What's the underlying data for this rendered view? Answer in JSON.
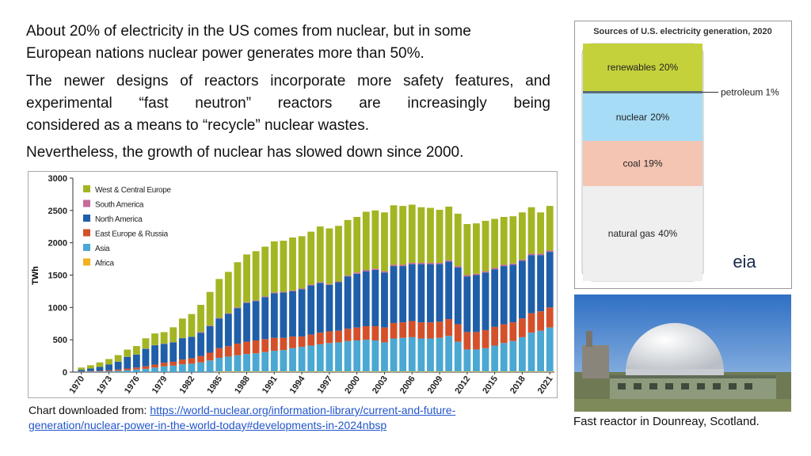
{
  "slide": {
    "paragraphs": [
      [
        "About 20% of electricity in the US comes from nuclear, but in some",
        "European nations nuclear power generates more than 50%."
      ],
      [
        "The newer designs of reactors incorporate more safety features, and",
        "experimental “fast neutron” reactors are increasingly being",
        "considered as a means  to “recycle” nuclear wastes."
      ],
      [
        "Nevertheless, the growth of nuclear has slowed down since 2000."
      ]
    ],
    "source": {
      "prefix": "Chart downloaded from:",
      "link": "https://world-nuclear.org/information-library/current-and-future-generation/nuclear-power-in-the-world-today#developments-in-2024nbsp"
    },
    "photo_caption": "Fast reactor in Dounreay, Scotland."
  },
  "chart_data": [
    {
      "type": "stacked-bar",
      "y_label": "TWh",
      "categories": [
        "1970",
        null,
        null,
        "1973",
        null,
        null,
        "1976",
        null,
        null,
        "1979",
        null,
        null,
        "1982",
        null,
        null,
        "1985",
        null,
        null,
        "1988",
        null,
        null,
        "1991",
        null,
        null,
        "1994",
        null,
        null,
        "1997",
        null,
        null,
        "2000",
        null,
        null,
        "2003",
        null,
        null,
        "2006",
        null,
        null,
        "2009",
        null,
        null,
        "2012",
        null,
        null,
        "2015",
        null,
        null,
        "2018",
        null,
        null,
        "2021"
      ],
      "ylim": [
        0,
        3000
      ],
      "yticks": [
        0,
        500,
        1000,
        1500,
        2000,
        2500,
        3000
      ],
      "grid": false,
      "series": [
        {
          "name": "West & Central Europe",
          "color": "#a4b524",
          "values": [
            35,
            50,
            70,
            85,
            100,
            110,
            130,
            160,
            180,
            180,
            230,
            300,
            350,
            420,
            520,
            600,
            640,
            700,
            740,
            760,
            770,
            790,
            790,
            820,
            810,
            820,
            860,
            860,
            860,
            860,
            860,
            900,
            900,
            910,
            920,
            910,
            900,
            860,
            850,
            820,
            830,
            810,
            790,
            780,
            780,
            760,
            740,
            730,
            730,
            720,
            640,
            690
          ]
        },
        {
          "name": "South America",
          "color": "#c76a9c",
          "values": [
            0,
            0,
            0,
            0,
            3,
            3,
            3,
            3,
            3,
            3,
            3,
            3,
            3,
            10,
            10,
            10,
            10,
            10,
            10,
            10,
            10,
            12,
            12,
            12,
            12,
            12,
            12,
            12,
            12,
            12,
            20,
            20,
            20,
            20,
            20,
            20,
            20,
            20,
            20,
            20,
            20,
            20,
            20,
            20,
            20,
            20,
            20,
            20,
            20,
            20,
            20,
            20
          ]
        },
        {
          "name": "North America",
          "color": "#1f5ea8",
          "values": [
            25,
            40,
            60,
            90,
            120,
            180,
            200,
            270,
            300,
            290,
            300,
            330,
            330,
            360,
            410,
            460,
            500,
            550,
            600,
            610,
            650,
            690,
            700,
            700,
            730,
            760,
            770,
            720,
            750,
            810,
            830,
            850,
            870,
            850,
            880,
            870,
            880,
            900,
            900,
            890,
            890,
            880,
            860,
            880,
            890,
            890,
            900,
            890,
            890,
            900,
            870,
            860
          ]
        },
        {
          "name": "East Europe & Russia",
          "color": "#d4502a",
          "values": [
            5,
            8,
            10,
            15,
            20,
            25,
            30,
            40,
            45,
            55,
            60,
            75,
            85,
            100,
            120,
            150,
            160,
            180,
            190,
            200,
            200,
            200,
            190,
            180,
            160,
            170,
            180,
            180,
            180,
            190,
            200,
            210,
            220,
            230,
            240,
            240,
            250,
            250,
            250,
            250,
            260,
            270,
            270,
            270,
            280,
            290,
            290,
            290,
            290,
            300,
            300,
            310
          ]
        },
        {
          "name": "Asia",
          "color": "#4aa8d2",
          "values": [
            5,
            8,
            10,
            12,
            20,
            30,
            40,
            50,
            70,
            90,
            100,
            120,
            130,
            150,
            180,
            210,
            230,
            250,
            270,
            280,
            300,
            320,
            330,
            360,
            380,
            400,
            420,
            440,
            450,
            470,
            480,
            490,
            480,
            450,
            510,
            520,
            530,
            510,
            510,
            520,
            550,
            460,
            340,
            340,
            360,
            400,
            440,
            470,
            530,
            600,
            630,
            680
          ]
        },
        {
          "name": "Africa",
          "color": "#f0b21f",
          "values": [
            0,
            0,
            0,
            0,
            0,
            0,
            0,
            0,
            0,
            0,
            0,
            0,
            0,
            0,
            0,
            10,
            10,
            10,
            10,
            10,
            10,
            10,
            10,
            10,
            10,
            10,
            10,
            10,
            10,
            10,
            10,
            10,
            10,
            10,
            10,
            10,
            10,
            10,
            10,
            10,
            10,
            10,
            10,
            10,
            10,
            10,
            10,
            10,
            10,
            10,
            10,
            10
          ]
        }
      ]
    },
    {
      "type": "stacked-column",
      "title": "Sources of U.S. electricity generation, 2020",
      "logo": "eia",
      "series": [
        {
          "name": "renewables",
          "color": "#c5d13b",
          "values": [
            20
          ],
          "value_labels": [
            "20%"
          ]
        },
        {
          "name": "petroleum",
          "color": "#5a6a7a",
          "values": [
            1
          ],
          "value_labels": [
            "1%"
          ]
        },
        {
          "name": "nuclear",
          "color": "#a6dcf6",
          "values": [
            20
          ],
          "value_labels": [
            "20%"
          ]
        },
        {
          "name": "coal",
          "color": "#f4c5b3",
          "values": [
            19
          ],
          "value_labels": [
            "19%"
          ]
        },
        {
          "name": "natural gas",
          "color": "#efefef",
          "values": [
            40
          ],
          "value_labels": [
            "40%"
          ]
        }
      ]
    }
  ]
}
